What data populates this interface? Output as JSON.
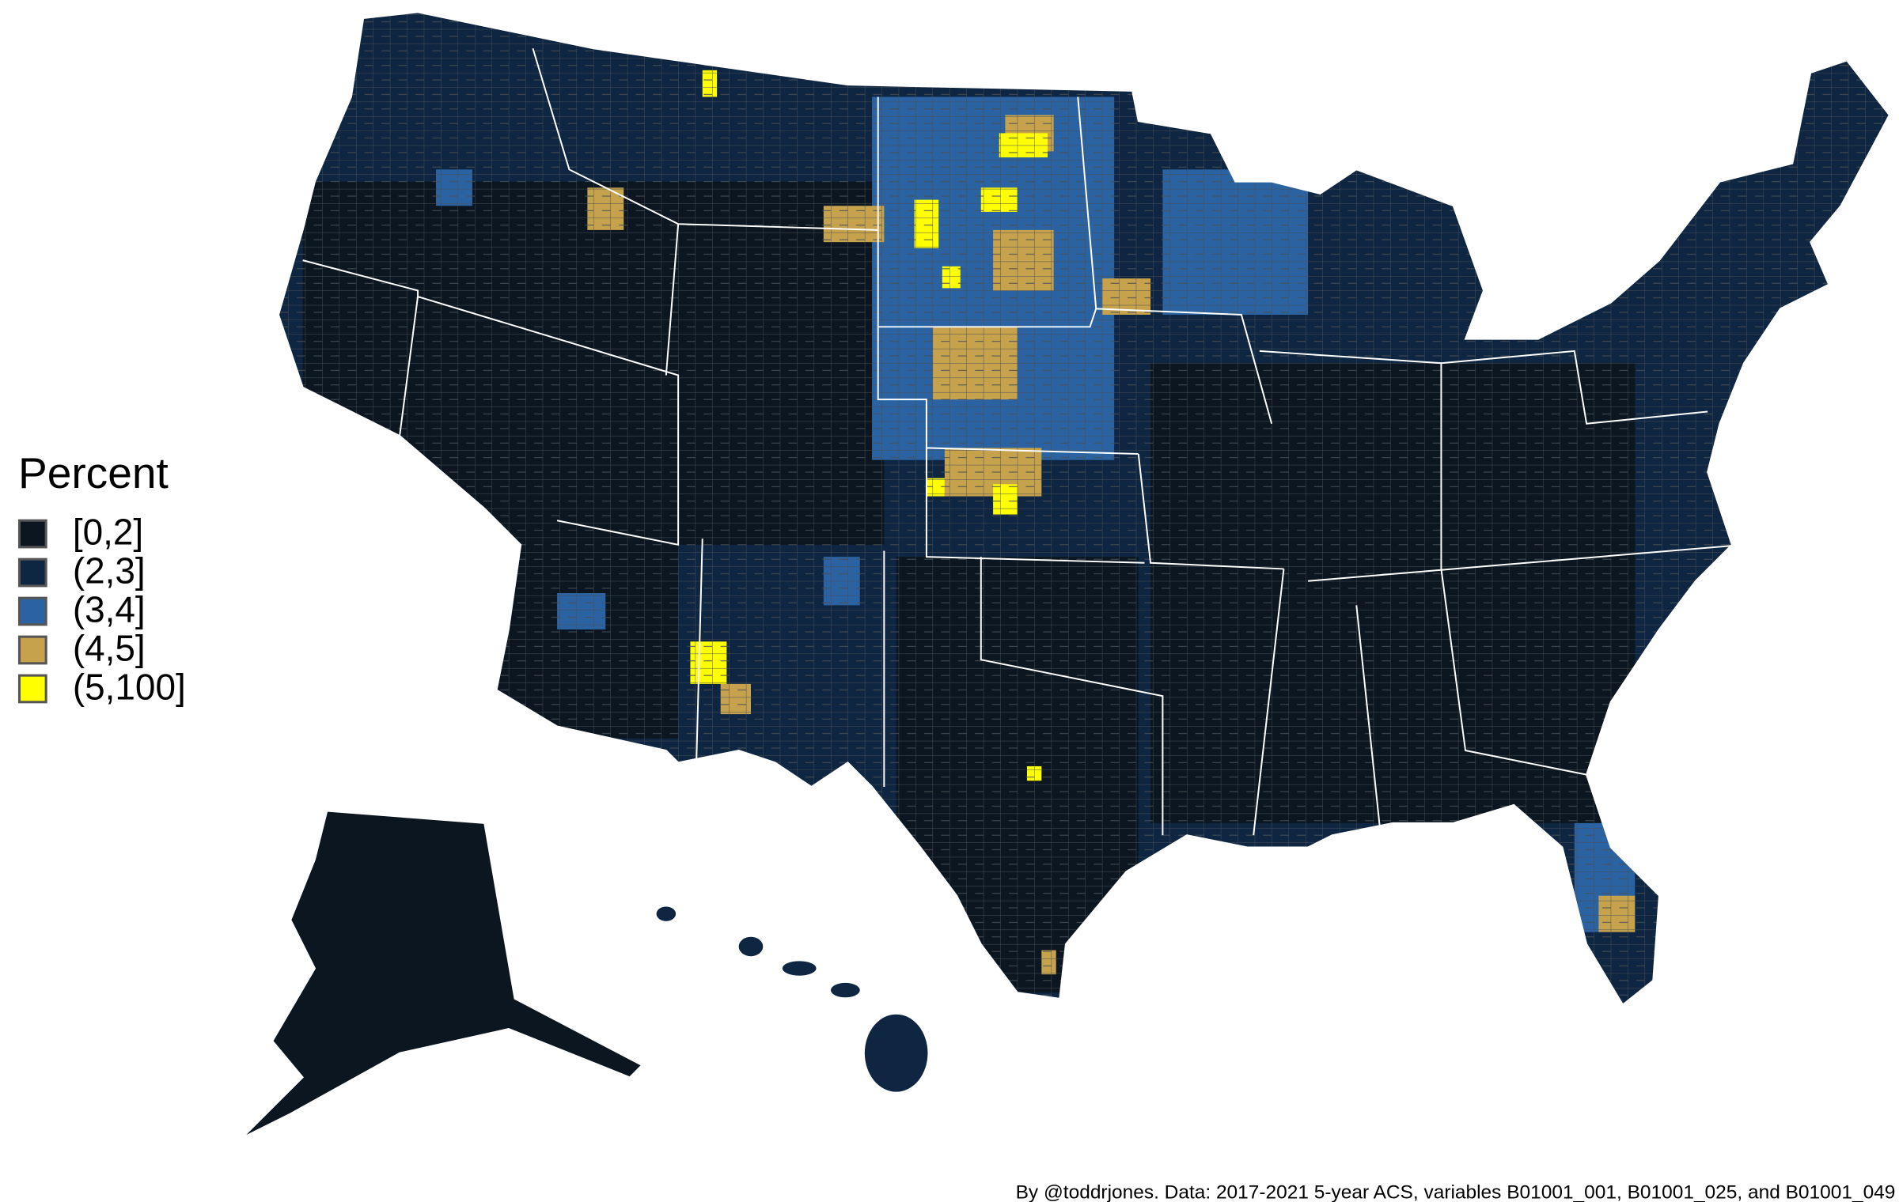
{
  "legend": {
    "title": "Percent",
    "items": [
      {
        "label": "[0,2]",
        "color": "#0b1620"
      },
      {
        "label": "(2,3]",
        "color": "#0e2642"
      },
      {
        "label": "(3,4]",
        "color": "#2b63a2"
      },
      {
        "label": "(4,5]",
        "color": "#c6a24c"
      },
      {
        "label": "(5,100]",
        "color": "#ffff00"
      }
    ]
  },
  "caption": "By @toddrjones. Data: 2017-2021 5-year ACS, variables B01001_001, B01001_025, and B01001_049"
}
